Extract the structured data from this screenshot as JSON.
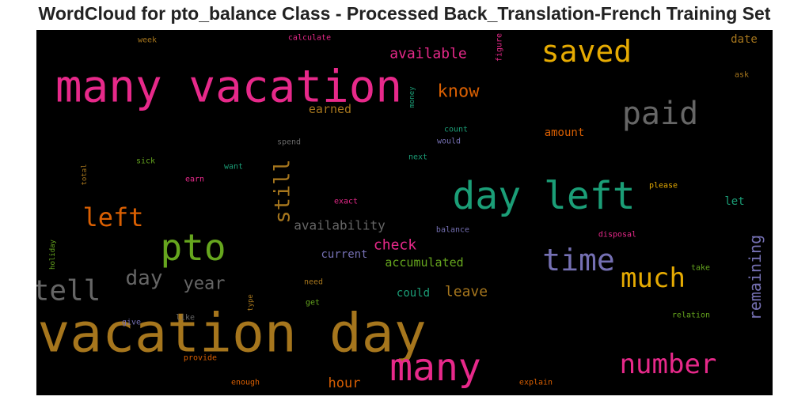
{
  "title": "WordCloud for pto_balance Class - Processed Back_Translation-French Training Set",
  "chart_data": {
    "type": "wordcloud",
    "title": "WordCloud for pto_balance Class - Processed Back_Translation-French Training Set",
    "background": "#000000",
    "colormap": [
      "#e7298a",
      "#a6761d",
      "#1b9e77",
      "#d95f02",
      "#66a61e",
      "#7570b3",
      "#e6ab02",
      "#666666"
    ],
    "words": [
      {
        "text": "vacation day",
        "color": "#a6761d",
        "rotate": 0
      },
      {
        "text": "many vacation",
        "color": "#e7298a",
        "rotate": 0
      },
      {
        "text": "day left",
        "color": "#1b9e77",
        "rotate": 0
      },
      {
        "text": "many",
        "color": "#e7298a",
        "rotate": 0
      },
      {
        "text": "saved",
        "color": "#e6ab02",
        "rotate": 0
      },
      {
        "text": "paid",
        "color": "#666666",
        "rotate": 0
      },
      {
        "text": "pto",
        "color": "#66a61e",
        "rotate": 0
      },
      {
        "text": "time",
        "color": "#7570b3",
        "rotate": 0
      },
      {
        "text": "much",
        "color": "#e6ab02",
        "rotate": 0
      },
      {
        "text": "number",
        "color": "#e7298a",
        "rotate": 0
      },
      {
        "text": "tell",
        "color": "#666666",
        "rotate": 0
      },
      {
        "text": "left",
        "color": "#d95f02",
        "rotate": 0
      },
      {
        "text": "still",
        "color": "#a6761d",
        "rotate": -90
      },
      {
        "text": "remaining",
        "color": "#7570b3",
        "rotate": -90
      },
      {
        "text": "day",
        "color": "#666666",
        "rotate": 0
      },
      {
        "text": "year",
        "color": "#666666",
        "rotate": 0
      },
      {
        "text": "know",
        "color": "#d95f02",
        "rotate": 0
      },
      {
        "text": "available",
        "color": "#e7298a",
        "rotate": 0
      },
      {
        "text": "check",
        "color": "#e7298a",
        "rotate": 0
      },
      {
        "text": "availability",
        "color": "#666666",
        "rotate": 0
      },
      {
        "text": "leave",
        "color": "#a6761d",
        "rotate": 0
      },
      {
        "text": "accumulated",
        "color": "#66a61e",
        "rotate": 0
      },
      {
        "text": "current",
        "color": "#7570b3",
        "rotate": 0
      },
      {
        "text": "hour",
        "color": "#d95f02",
        "rotate": 0
      },
      {
        "text": "could",
        "color": "#1b9e77",
        "rotate": 0
      },
      {
        "text": "earned",
        "color": "#a6761d",
        "rotate": 0
      },
      {
        "text": "amount",
        "color": "#d95f02",
        "rotate": 0
      },
      {
        "text": "date",
        "color": "#a6761d",
        "rotate": 0
      },
      {
        "text": "let",
        "color": "#1b9e77",
        "rotate": 0
      },
      {
        "text": "calculate",
        "color": "#e7298a",
        "rotate": 0
      },
      {
        "text": "week",
        "color": "#a6761d",
        "rotate": 0
      },
      {
        "text": "figure",
        "color": "#e7298a",
        "rotate": -90
      },
      {
        "text": "ask",
        "color": "#a6761d",
        "rotate": 0
      },
      {
        "text": "money",
        "color": "#1b9e77",
        "rotate": -90
      },
      {
        "text": "count",
        "color": "#1b9e77",
        "rotate": 0
      },
      {
        "text": "would",
        "color": "#7570b3",
        "rotate": 0
      },
      {
        "text": "spend",
        "color": "#666666",
        "rotate": 0
      },
      {
        "text": "next",
        "color": "#1b9e77",
        "rotate": 0
      },
      {
        "text": "sick",
        "color": "#66a61e",
        "rotate": 0
      },
      {
        "text": "want",
        "color": "#1b9e77",
        "rotate": 0
      },
      {
        "text": "total",
        "color": "#a6761d",
        "rotate": -90
      },
      {
        "text": "earn",
        "color": "#e7298a",
        "rotate": 0
      },
      {
        "text": "exact",
        "color": "#e7298a",
        "rotate": 0
      },
      {
        "text": "please",
        "color": "#e6ab02",
        "rotate": 0
      },
      {
        "text": "balance",
        "color": "#7570b3",
        "rotate": 0
      },
      {
        "text": "disposal",
        "color": "#e7298a",
        "rotate": 0
      },
      {
        "text": "holiday",
        "color": "#66a61e",
        "rotate": -90
      },
      {
        "text": "take",
        "color": "#66a61e",
        "rotate": 0
      },
      {
        "text": "need",
        "color": "#a6761d",
        "rotate": 0
      },
      {
        "text": "type",
        "color": "#a6761d",
        "rotate": -90
      },
      {
        "text": "get",
        "color": "#66a61e",
        "rotate": 0
      },
      {
        "text": "give",
        "color": "#7570b3",
        "rotate": 0
      },
      {
        "text": "like",
        "color": "#666666",
        "rotate": 0
      },
      {
        "text": "relation",
        "color": "#66a61e",
        "rotate": 0
      },
      {
        "text": "provide",
        "color": "#d95f02",
        "rotate": 0
      },
      {
        "text": "enough",
        "color": "#d95f02",
        "rotate": 0
      },
      {
        "text": "explain",
        "color": "#d95f02",
        "rotate": 0
      }
    ]
  }
}
